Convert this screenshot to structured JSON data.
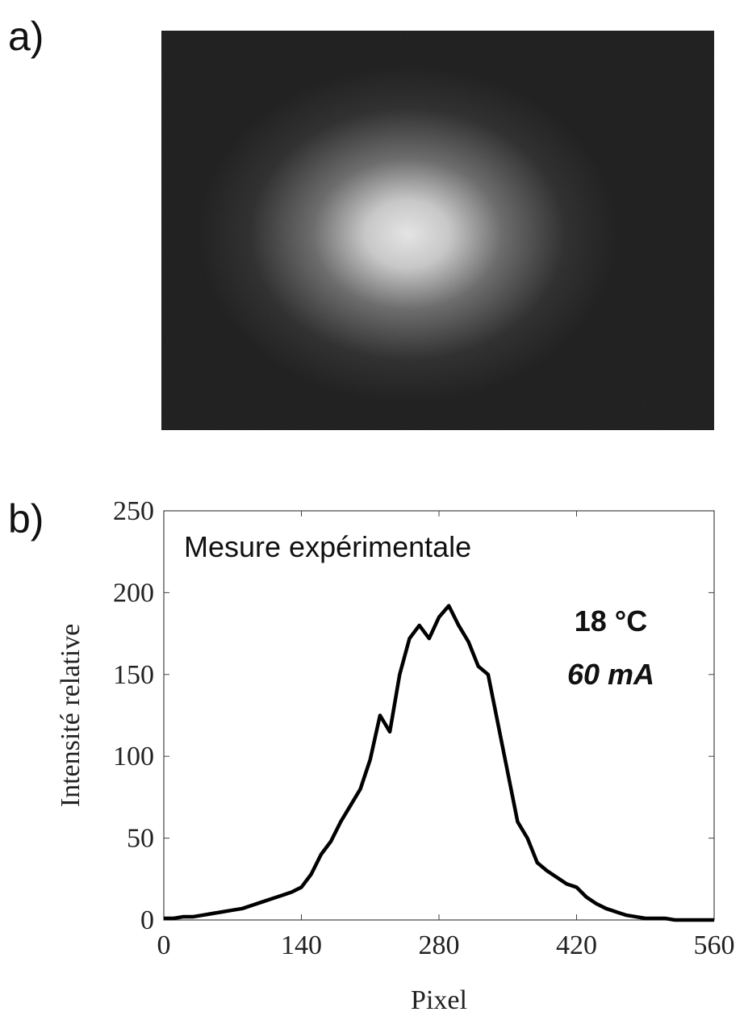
{
  "panel_labels": [
    "a)",
    "b)"
  ],
  "chart_data": {
    "type": "line",
    "xlabel": "Pixel",
    "ylabel": "Intensité relative",
    "annotations": [
      "Mesure expérimentale",
      "18 °C",
      "60 mA"
    ],
    "x": [
      0,
      10,
      20,
      30,
      40,
      50,
      60,
      70,
      80,
      90,
      100,
      110,
      120,
      130,
      140,
      150,
      160,
      170,
      180,
      190,
      200,
      210,
      220,
      230,
      240,
      250,
      260,
      270,
      280,
      290,
      300,
      310,
      320,
      330,
      340,
      350,
      360,
      370,
      380,
      390,
      400,
      410,
      420,
      430,
      440,
      450,
      460,
      470,
      480,
      490,
      500,
      510,
      520,
      530,
      540,
      550,
      560
    ],
    "series": [
      {
        "name": "Mesure expérimentale",
        "color": "#000000",
        "values": [
          1,
          1,
          2,
          2,
          3,
          4,
          5,
          6,
          7,
          9,
          11,
          13,
          15,
          17,
          20,
          28,
          40,
          48,
          60,
          70,
          80,
          98,
          125,
          115,
          150,
          172,
          180,
          172,
          185,
          192,
          180,
          170,
          155,
          150,
          120,
          90,
          60,
          50,
          35,
          30,
          26,
          22,
          20,
          14,
          10,
          7,
          5,
          3,
          2,
          1,
          1,
          1,
          0,
          0,
          0,
          0,
          0
        ]
      }
    ],
    "xlim": [
      0,
      560
    ],
    "ylim": [
      0,
      250
    ],
    "xticks": [
      0,
      140,
      280,
      420,
      560
    ],
    "yticks": [
      0,
      50,
      100,
      150,
      200,
      250
    ]
  }
}
